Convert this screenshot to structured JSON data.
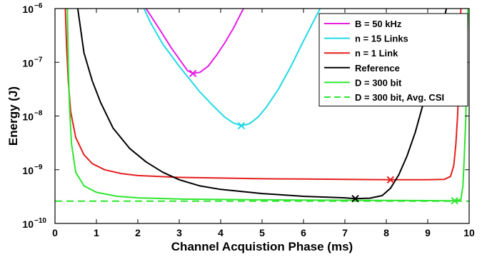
{
  "chart_data": {
    "type": "line",
    "xlabel": "Channel Acquistion Phase (ms)",
    "ylabel": "Energy (J)",
    "xlim": [
      0,
      10
    ],
    "ylim": [
      1e-10,
      1e-06
    ],
    "yscale": "log",
    "grid": false,
    "legend_position": "top-right",
    "x_ticks": [
      0,
      1,
      2,
      3,
      4,
      5,
      6,
      7,
      8,
      9,
      10
    ],
    "y_ticks": [
      {
        "base": "10",
        "exp": "−10",
        "value": 1e-10
      },
      {
        "base": "10",
        "exp": "−9",
        "value": 1e-09
      },
      {
        "base": "10",
        "exp": "−8",
        "value": 1e-08
      },
      {
        "base": "10",
        "exp": "−7",
        "value": 1e-07
      },
      {
        "base": "10",
        "exp": "−6",
        "value": 1e-06
      }
    ],
    "series": [
      {
        "name": "B = 50 kHz",
        "color": "#e61ee6",
        "style": "solid",
        "points": [
          [
            2.2,
            1e-06
          ],
          [
            2.5,
            4.4e-07
          ],
          [
            2.8,
            1.9e-07
          ],
          [
            3.0,
            1.15e-07
          ],
          [
            3.2,
            7e-08
          ],
          [
            3.33,
            6.2e-08
          ],
          [
            3.5,
            6.5e-08
          ],
          [
            3.7,
            8.5e-08
          ],
          [
            3.9,
            1.35e-07
          ],
          [
            4.1,
            2.3e-07
          ],
          [
            4.3,
            4.2e-07
          ],
          [
            4.55,
            1e-06
          ]
        ],
        "minimum": [
          3.33,
          6.2e-08
        ]
      },
      {
        "name": "n = 15 Links",
        "color": "#21d9e6",
        "style": "solid",
        "points": [
          [
            2.15,
            1e-06
          ],
          [
            2.3,
            5.6e-07
          ],
          [
            2.6,
            2.2e-07
          ],
          [
            3.0,
            8.4e-08
          ],
          [
            3.5,
            2.8e-08
          ],
          [
            3.8,
            1.6e-08
          ],
          [
            4.1,
            9.5e-09
          ],
          [
            4.3,
            7.5e-09
          ],
          [
            4.5,
            6.6e-09
          ],
          [
            4.7,
            7.2e-09
          ],
          [
            4.9,
            9.5e-09
          ],
          [
            5.1,
            1.45e-08
          ],
          [
            5.4,
            3.2e-08
          ],
          [
            5.7,
            8.5e-08
          ],
          [
            6.0,
            2.5e-07
          ],
          [
            6.2,
            5e-07
          ],
          [
            6.4,
            1e-06
          ]
        ],
        "minimum": [
          4.5,
          6.6e-09
        ]
      },
      {
        "name": "n = 1 Link",
        "color": "#e61e1e",
        "style": "solid",
        "points": [
          [
            0.25,
            1e-06
          ],
          [
            0.28,
            2e-07
          ],
          [
            0.32,
            4.5e-08
          ],
          [
            0.38,
            1.2e-08
          ],
          [
            0.5,
            4e-09
          ],
          [
            0.7,
            1.9e-09
          ],
          [
            0.9,
            1.3e-09
          ],
          [
            1.2,
            1e-09
          ],
          [
            1.6,
            8.5e-10
          ],
          [
            2.0,
            7.8e-10
          ],
          [
            3.0,
            7.2e-10
          ],
          [
            4.0,
            7e-10
          ],
          [
            5.0,
            6.8e-10
          ],
          [
            6.0,
            6.7e-10
          ],
          [
            7.0,
            6.6e-10
          ],
          [
            8.1,
            6.5e-10
          ],
          [
            9.0,
            6.5e-10
          ],
          [
            9.4,
            6.6e-10
          ],
          [
            9.55,
            7.5e-10
          ],
          [
            9.63,
            1.2e-09
          ],
          [
            9.68,
            3e-09
          ],
          [
            9.72,
            1e-08
          ],
          [
            9.76,
            6e-08
          ],
          [
            9.8,
            1e-06
          ]
        ],
        "minimum": [
          8.1,
          6.5e-10
        ]
      },
      {
        "name": "Reference",
        "color": "#000000",
        "style": "solid",
        "points": [
          [
            0.55,
            1e-06
          ],
          [
            0.7,
            1.5e-07
          ],
          [
            0.9,
            4.5e-08
          ],
          [
            1.1,
            1.8e-08
          ],
          [
            1.4,
            6e-09
          ],
          [
            1.8,
            2.5e-09
          ],
          [
            2.2,
            1.4e-09
          ],
          [
            2.6,
            9e-10
          ],
          [
            3.0,
            6.5e-10
          ],
          [
            3.5,
            5e-10
          ],
          [
            4.0,
            4.3e-10
          ],
          [
            5.0,
            3.6e-10
          ],
          [
            6.0,
            3.2e-10
          ],
          [
            7.0,
            3e-10
          ],
          [
            7.25,
            2.9e-10
          ],
          [
            7.6,
            2.95e-10
          ],
          [
            7.9,
            3.3e-10
          ],
          [
            8.1,
            4.5e-10
          ],
          [
            8.3,
            8e-10
          ],
          [
            8.5,
            1.8e-09
          ],
          [
            8.7,
            5e-09
          ],
          [
            8.9,
            1.8e-08
          ],
          [
            9.1,
            7e-08
          ],
          [
            9.3,
            3e-07
          ],
          [
            9.45,
            1e-06
          ]
        ],
        "minimum": [
          7.25,
          2.9e-10
        ]
      },
      {
        "name": "D = 300 bit",
        "color": "#2ee62e",
        "style": "solid",
        "points": [
          [
            0.3,
            1e-06
          ],
          [
            0.32,
            1e-07
          ],
          [
            0.35,
            1.5e-08
          ],
          [
            0.4,
            3e-09
          ],
          [
            0.5,
            9e-10
          ],
          [
            0.7,
            5e-10
          ],
          [
            1.0,
            3.8e-10
          ],
          [
            1.5,
            3.2e-10
          ],
          [
            2.0,
            3e-10
          ],
          [
            3.0,
            2.85e-10
          ],
          [
            4.0,
            2.8e-10
          ],
          [
            5.0,
            2.75e-10
          ],
          [
            6.0,
            2.72e-10
          ],
          [
            7.0,
            2.7e-10
          ],
          [
            8.0,
            2.68e-10
          ],
          [
            9.0,
            2.66e-10
          ],
          [
            9.65,
            2.65e-10
          ],
          [
            9.8,
            2.8e-10
          ],
          [
            9.85,
            5e-10
          ],
          [
            9.88,
            1.5e-09
          ],
          [
            9.92,
            1e-08
          ],
          [
            9.95,
            2e-07
          ],
          [
            9.97,
            1e-06
          ]
        ],
        "minimum": [
          9.65,
          2.65e-10
        ]
      },
      {
        "name": "D = 300 bit, Avg. CSI",
        "color": "#2ee62e",
        "style": "dashed",
        "points": [
          [
            0,
            2.6e-10
          ],
          [
            10,
            2.6e-10
          ]
        ]
      }
    ]
  }
}
